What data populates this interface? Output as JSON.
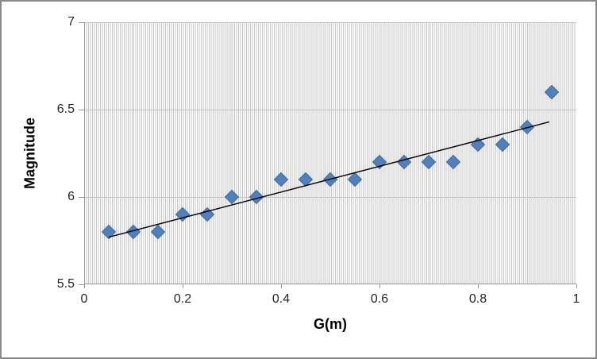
{
  "frame": {
    "border_color": "#8a8a8a",
    "background": "#ffffff"
  },
  "chart_data": {
    "type": "scatter",
    "title": "",
    "xlabel": "G(m)",
    "ylabel": "Magnitude",
    "xlim": [
      0,
      1
    ],
    "ylim": [
      5.5,
      7
    ],
    "xtick_values": [
      0,
      0.2,
      0.4,
      0.6,
      0.8,
      1
    ],
    "xtick_labels": [
      "0",
      "0.2",
      "0.4",
      "0.6",
      "0.8",
      "1"
    ],
    "ytick_values": [
      7,
      6.5,
      6,
      5.5
    ],
    "ytick_labels": [
      "7",
      "6.5",
      "6",
      "5.5"
    ],
    "grid": {
      "minor_vertical": true,
      "minor_vertical_unit": 0.004,
      "major_horizontal_interval": 0.5,
      "gridline_color": "#c6c6c6",
      "axis_color": "#979797"
    },
    "legend": "none",
    "series": [
      {
        "name": "magnitude-data-points",
        "type": "scatter",
        "marker": "diamond",
        "color": "#4F81BD",
        "border_color": "#3E699F",
        "x": [
          0.05,
          0.1,
          0.15,
          0.2,
          0.25,
          0.3,
          0.35,
          0.4,
          0.45,
          0.5,
          0.55,
          0.6,
          0.65,
          0.7,
          0.75,
          0.8,
          0.85,
          0.9,
          0.95
        ],
        "y": [
          5.8,
          5.8,
          5.8,
          5.9,
          5.9,
          6.0,
          6.0,
          6.1,
          6.1,
          6.1,
          6.1,
          6.2,
          6.2,
          6.2,
          6.2,
          6.3,
          6.3,
          6.4,
          6.6
        ]
      },
      {
        "name": "linear-trendline",
        "type": "line",
        "color": "#000000",
        "x": [
          0.05,
          0.945
        ],
        "y": [
          5.77,
          6.43
        ]
      }
    ]
  }
}
